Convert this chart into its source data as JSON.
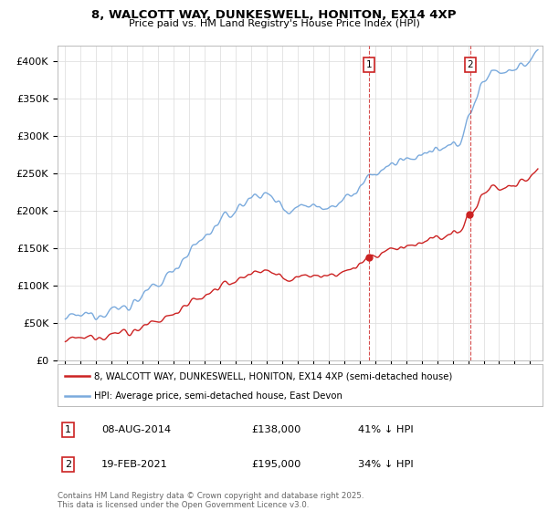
{
  "title1": "8, WALCOTT WAY, DUNKESWELL, HONITON, EX14 4XP",
  "title2": "Price paid vs. HM Land Registry's House Price Index (HPI)",
  "ylabel_ticks": [
    "£0",
    "£50K",
    "£100K",
    "£150K",
    "£200K",
    "£250K",
    "£300K",
    "£350K",
    "£400K"
  ],
  "ytick_vals": [
    0,
    50000,
    100000,
    150000,
    200000,
    250000,
    300000,
    350000,
    400000
  ],
  "ylim": [
    0,
    420000
  ],
  "xlim_start": 1994.5,
  "xlim_end": 2025.8,
  "hpi_color": "#7aaadd",
  "price_color": "#cc2222",
  "marker1_date": 2014.6,
  "marker1_price": 138000,
  "marker1_label": "08-AUG-2014",
  "marker1_amount": "£138,000",
  "marker1_pct": "41% ↓ HPI",
  "marker2_date": 2021.12,
  "marker2_price": 195000,
  "marker2_label": "19-FEB-2021",
  "marker2_amount": "£195,000",
  "marker2_pct": "34% ↓ HPI",
  "legend_label_price": "8, WALCOTT WAY, DUNKESWELL, HONITON, EX14 4XP (semi-detached house)",
  "legend_label_hpi": "HPI: Average price, semi-detached house, East Devon",
  "footer": "Contains HM Land Registry data © Crown copyright and database right 2025.\nThis data is licensed under the Open Government Licence v3.0.",
  "grid_color": "#e0e0e0"
}
